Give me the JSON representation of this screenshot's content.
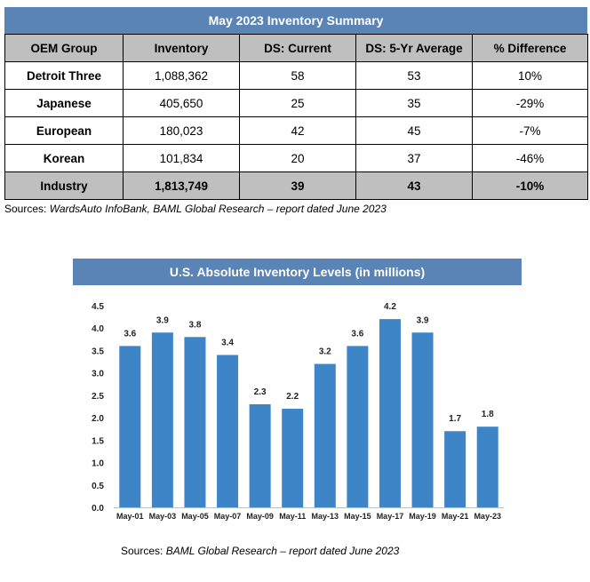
{
  "table": {
    "title": "May 2023 Inventory Summary",
    "headers": [
      "OEM Group",
      "Inventory",
      "DS: Current",
      "DS: 5-Yr Average",
      "% Difference"
    ],
    "rows": [
      [
        "Detroit Three",
        "1,088,362",
        "58",
        "53",
        "10%"
      ],
      [
        "Japanese",
        "405,650",
        "25",
        "35",
        "-29%"
      ],
      [
        "European",
        "180,023",
        "42",
        "45",
        "-7%"
      ],
      [
        "Korean",
        "101,834",
        "20",
        "37",
        "-46%"
      ]
    ],
    "total": [
      "Industry",
      "1,813,749",
      "39",
      "43",
      "-10%"
    ],
    "source_prefix": "Sources: ",
    "source_text": "WardsAuto InfoBank, BAML Global Research – report dated June 2023"
  },
  "chart_data": {
    "type": "bar",
    "title": "U.S. Absolute Inventory Levels (in millions)",
    "categories": [
      "May-01",
      "May-03",
      "May-05",
      "May-07",
      "May-09",
      "May-11",
      "May-13",
      "May-15",
      "May-17",
      "May-19",
      "May-21",
      "May-23"
    ],
    "values": [
      3.6,
      3.9,
      3.8,
      3.4,
      2.3,
      2.2,
      3.2,
      3.6,
      4.2,
      3.9,
      1.7,
      1.8
    ],
    "data_labels": [
      "3.6",
      "3.9",
      "3.8",
      "3.4",
      "2.3",
      "2.2",
      "3.2",
      "3.6",
      "4.2",
      "3.9",
      "1.7",
      "1.8"
    ],
    "yticks": [
      "0.0",
      "0.5",
      "1.0",
      "1.5",
      "2.0",
      "2.5",
      "3.0",
      "3.5",
      "4.0",
      "4.5"
    ],
    "ylim": [
      0,
      4.5
    ],
    "grid": false,
    "color": "#3d85c6",
    "xlabel": "",
    "ylabel": ""
  },
  "chart_source": {
    "prefix": "Sources: ",
    "text": "BAML Global Research – report dated June 2023"
  }
}
